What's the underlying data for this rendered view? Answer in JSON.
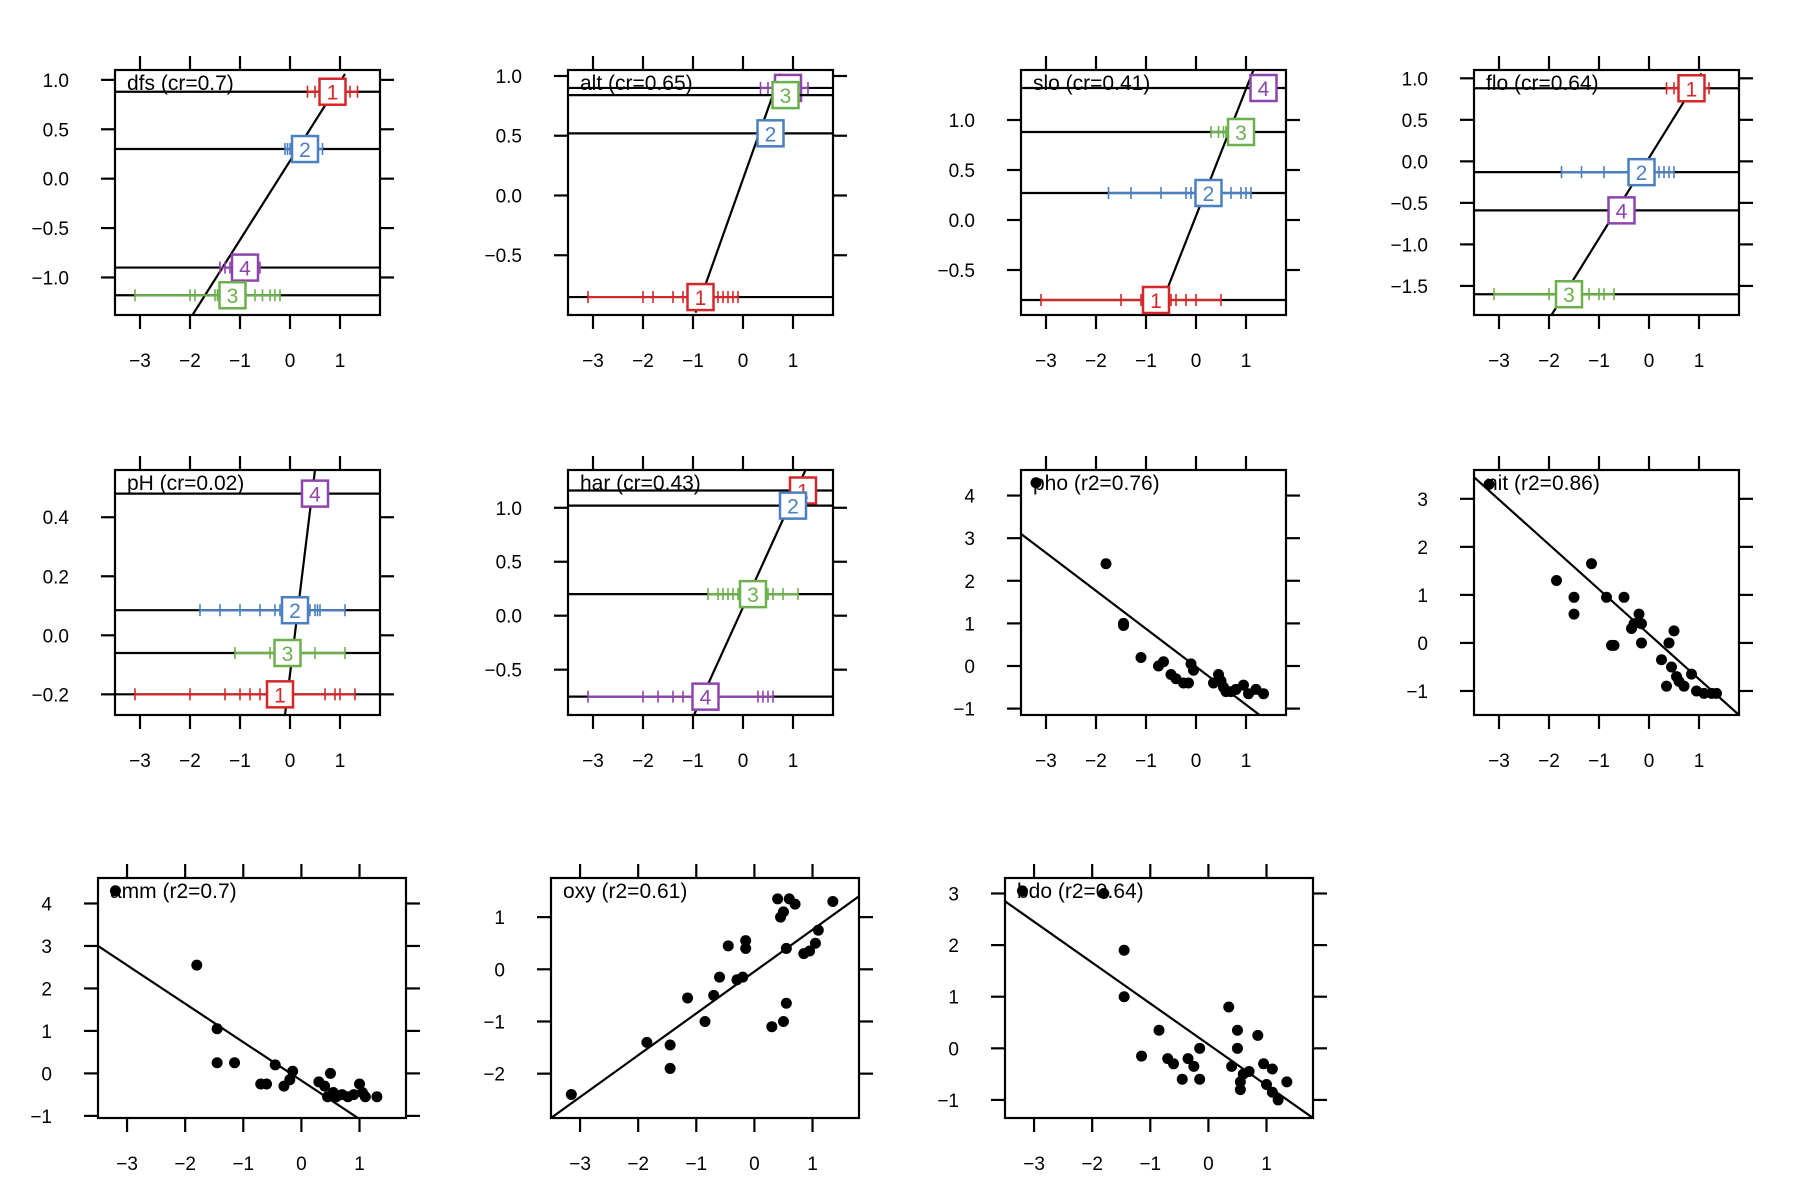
{
  "figure": {
    "colors": {
      "1": "#d62728",
      "2": "#4a7fc1",
      "3": "#6ab04c",
      "4": "#8e44ad",
      "axis": "#000000",
      "points": "#000000"
    }
  },
  "chart_data": [
    {
      "type": "line",
      "title": "dfs (cr=0.7)",
      "xticks": [
        -3,
        -2,
        -1,
        0,
        1
      ],
      "yticks": [
        -1.0,
        -0.5,
        0.0,
        0.5,
        1.0
      ],
      "ytick_labels": [
        "−1.0",
        "−0.5",
        "0.0",
        "0.5",
        "1.0"
      ],
      "xlim": [
        -3.5,
        1.8
      ],
      "ylim": [
        -1.38,
        1.1
      ],
      "line": {
        "x1": -1.95,
        "y1": -1.38,
        "x2": 1.1,
        "y2": 1.06
      },
      "levels": [
        {
          "label": "1",
          "x": 0.85,
          "y": 0.88,
          "rug": [
            0.35,
            0.5,
            0.62,
            0.72,
            0.8,
            0.95,
            1.1,
            1.2,
            1.35
          ]
        },
        {
          "label": "2",
          "x": 0.3,
          "y": 0.3,
          "rug": [
            -0.1,
            -0.05,
            0.0,
            0.05,
            0.1,
            0.15,
            0.2,
            0.45,
            0.55,
            0.65
          ]
        },
        {
          "label": "4",
          "x": -0.9,
          "y": -0.9,
          "rug": [
            -1.4,
            -1.3,
            -1.2,
            -1.1,
            -0.7,
            -0.65,
            -0.6
          ]
        },
        {
          "label": "3",
          "x": -1.15,
          "y": -1.18,
          "rug": [
            -3.1,
            -2.0,
            -1.9,
            -1.5,
            -1.45,
            -0.7,
            -0.55,
            -0.4,
            -0.3,
            -0.2
          ]
        }
      ]
    },
    {
      "type": "line",
      "title": "alt (cr=0.65)",
      "xticks": [
        -3,
        -2,
        -1,
        0,
        1
      ],
      "yticks": [
        -0.5,
        0.0,
        0.5,
        1.0
      ],
      "ytick_labels": [
        "−0.5",
        "0.0",
        "0.5",
        "1.0"
      ],
      "xlim": [
        -3.5,
        1.8
      ],
      "ylim": [
        -1.0,
        1.05
      ],
      "line": {
        "x1": -0.95,
        "y1": -0.98,
        "x2": 0.75,
        "y2": 1.02
      },
      "levels": [
        {
          "label": "4",
          "x": 0.9,
          "y": 0.9,
          "rug": [
            0.35,
            0.5,
            0.7,
            0.8,
            0.9,
            1.0,
            1.1,
            1.3
          ]
        },
        {
          "label": "3",
          "x": 0.85,
          "y": 0.84,
          "rug": []
        },
        {
          "label": "2",
          "x": 0.55,
          "y": 0.52,
          "rug": []
        },
        {
          "label": "1",
          "x": -0.85,
          "y": -0.85,
          "rug": [
            -3.1,
            -2.0,
            -1.8,
            -1.4,
            -1.2,
            -0.6,
            -0.5,
            -0.4,
            -0.3,
            -0.2,
            -0.1
          ]
        }
      ]
    },
    {
      "type": "line",
      "title": "slo (cr=0.41)",
      "xticks": [
        -3,
        -2,
        -1,
        0,
        1
      ],
      "yticks": [
        -0.5,
        0.0,
        0.5,
        1.0
      ],
      "ytick_labels": [
        "−0.5",
        "0.0",
        "0.5",
        "1.0"
      ],
      "xlim": [
        -3.5,
        1.8
      ],
      "ylim": [
        -0.95,
        1.5
      ],
      "line": {
        "x1": -0.78,
        "y1": -0.95,
        "x2": 1.15,
        "y2": 1.5
      },
      "levels": [
        {
          "label": "4",
          "x": 1.35,
          "y": 1.32,
          "rug": []
        },
        {
          "label": "3",
          "x": 0.9,
          "y": 0.88,
          "rug": [
            0.3,
            0.45,
            0.55,
            0.6,
            0.7,
            1.1
          ]
        },
        {
          "label": "2",
          "x": 0.25,
          "y": 0.27,
          "rug": [
            -1.75,
            -1.3,
            -0.7,
            -0.2,
            -0.1,
            0.0,
            0.1,
            0.4,
            0.5,
            0.7,
            0.9,
            1.0,
            1.1
          ]
        },
        {
          "label": "1",
          "x": -0.8,
          "y": -0.8,
          "rug": [
            -3.1,
            -1.5,
            -1.1,
            -0.9,
            -0.6,
            -0.5,
            -0.4,
            -0.2,
            0.0,
            0.5
          ]
        }
      ]
    },
    {
      "type": "line",
      "title": "flo (cr=0.64)",
      "xticks": [
        -3,
        -2,
        -1,
        0,
        1
      ],
      "yticks": [
        -1.5,
        -1.0,
        -0.5,
        0.0,
        0.5,
        1.0
      ],
      "ytick_labels": [
        "−1.5",
        "−1.0",
        "−0.5",
        "0.0",
        "0.5",
        "1.0"
      ],
      "xlim": [
        -3.5,
        1.8
      ],
      "ylim": [
        -1.85,
        1.1
      ],
      "line": {
        "x1": -1.95,
        "y1": -1.85,
        "x2": 1.05,
        "y2": 1.06
      },
      "levels": [
        {
          "label": "1",
          "x": 0.85,
          "y": 0.88,
          "rug": [
            0.35,
            0.5,
            0.65,
            0.8,
            0.9,
            1.05,
            1.2
          ]
        },
        {
          "label": "2",
          "x": -0.15,
          "y": -0.13,
          "rug": [
            -1.75,
            -1.35,
            -0.9,
            -0.4,
            -0.2,
            -0.1,
            0.05,
            0.2,
            0.3,
            0.4,
            0.5
          ]
        },
        {
          "label": "4",
          "x": -0.55,
          "y": -0.59,
          "rug": []
        },
        {
          "label": "3",
          "x": -1.6,
          "y": -1.6,
          "rug": [
            -3.1,
            -2.0,
            -1.85,
            -1.4,
            -1.2,
            -1.0,
            -0.9,
            -0.7
          ]
        }
      ]
    },
    {
      "type": "line",
      "title": "pH (cr=0.02)",
      "xticks": [
        -3,
        -2,
        -1,
        0,
        1
      ],
      "yticks": [
        -0.2,
        0.0,
        0.2,
        0.4
      ],
      "ytick_labels": [
        "−0.2",
        "0.0",
        "0.2",
        "0.4"
      ],
      "xlim": [
        -3.5,
        1.8
      ],
      "ylim": [
        -0.27,
        0.56
      ],
      "line": {
        "x1": -0.1,
        "y1": -0.27,
        "x2": 0.5,
        "y2": 0.56
      },
      "levels": [
        {
          "label": "4",
          "x": 0.5,
          "y": 0.48,
          "rug": []
        },
        {
          "label": "2",
          "x": 0.1,
          "y": 0.085,
          "rug": [
            -1.8,
            -1.4,
            -1.0,
            -0.6,
            -0.3,
            -0.2,
            -0.1,
            0.0,
            0.1,
            0.3,
            0.4,
            0.5,
            0.55,
            0.6,
            1.1
          ]
        },
        {
          "label": "3",
          "x": -0.05,
          "y": -0.06,
          "rug": [
            -1.1,
            -0.4,
            -0.3,
            -0.1,
            0.5,
            1.1
          ]
        },
        {
          "label": "1",
          "x": -0.2,
          "y": -0.2,
          "rug": [
            -3.1,
            -2.0,
            -1.3,
            -1.0,
            -0.8,
            -0.6,
            -0.4,
            -0.3,
            0.0,
            0.7,
            0.9,
            1.0,
            1.3
          ]
        }
      ]
    },
    {
      "type": "line",
      "title": "har (cr=0.43)",
      "xticks": [
        -3,
        -2,
        -1,
        0,
        1
      ],
      "yticks": [
        -0.5,
        0.0,
        0.5,
        1.0
      ],
      "ytick_labels": [
        "−0.5",
        "0.0",
        "0.5",
        "1.0"
      ],
      "xlim": [
        -3.5,
        1.8
      ],
      "ylim": [
        -0.92,
        1.35
      ],
      "line": {
        "x1": -0.98,
        "y1": -0.92,
        "x2": 1.25,
        "y2": 1.35
      },
      "levels": [
        {
          "label": "1",
          "x": 1.2,
          "y": 1.16,
          "rug": []
        },
        {
          "label": "2",
          "x": 1.0,
          "y": 1.02,
          "rug": []
        },
        {
          "label": "3",
          "x": 0.2,
          "y": 0.2,
          "rug": [
            -0.7,
            -0.5,
            -0.4,
            -0.3,
            -0.2,
            -0.1,
            0.0,
            0.4,
            0.5,
            0.6,
            0.8,
            1.1
          ]
        },
        {
          "label": "4",
          "x": -0.75,
          "y": -0.75,
          "rug": [
            -3.1,
            -2.0,
            -1.7,
            -1.4,
            -1.2,
            -1.0,
            -0.5,
            0.3,
            0.4,
            0.5,
            0.6
          ]
        }
      ]
    },
    {
      "type": "scatter",
      "title": "pho (r2=0.76)",
      "xticks": [
        -3,
        -2,
        -1,
        0,
        1
      ],
      "yticks": [
        -1,
        0,
        1,
        2,
        3,
        4
      ],
      "ytick_labels": [
        "−1",
        "0",
        "1",
        "2",
        "3",
        "4"
      ],
      "xlim": [
        -3.5,
        1.8
      ],
      "ylim": [
        -1.15,
        4.6
      ],
      "line": {
        "x1": -3.5,
        "y1": 3.1,
        "x2": 1.8,
        "y2": -1.62
      },
      "points": [
        [
          -3.2,
          4.3
        ],
        [
          -1.8,
          2.4
        ],
        [
          -1.45,
          1.0
        ],
        [
          -1.45,
          0.95
        ],
        [
          -1.1,
          0.2
        ],
        [
          -0.75,
          0.0
        ],
        [
          -0.65,
          0.1
        ],
        [
          -0.5,
          -0.2
        ],
        [
          -0.4,
          -0.3
        ],
        [
          -0.25,
          -0.4
        ],
        [
          -0.15,
          -0.4
        ],
        [
          -0.1,
          0.05
        ],
        [
          -0.05,
          -0.1
        ],
        [
          0.35,
          -0.4
        ],
        [
          0.45,
          -0.2
        ],
        [
          0.5,
          -0.35
        ],
        [
          0.55,
          -0.5
        ],
        [
          0.6,
          -0.6
        ],
        [
          0.7,
          -0.6
        ],
        [
          0.8,
          -0.55
        ],
        [
          0.95,
          -0.45
        ],
        [
          1.05,
          -0.65
        ],
        [
          1.2,
          -0.55
        ],
        [
          1.35,
          -0.65
        ]
      ]
    },
    {
      "type": "scatter",
      "title": "nit (r2=0.86)",
      "xticks": [
        -3,
        -2,
        -1,
        0,
        1
      ],
      "yticks": [
        -1,
        0,
        1,
        2,
        3
      ],
      "ytick_labels": [
        "−1",
        "0",
        "1",
        "2",
        "3"
      ],
      "xlim": [
        -3.5,
        1.8
      ],
      "ylim": [
        -1.5,
        3.6
      ],
      "line": {
        "x1": -3.5,
        "y1": 3.45,
        "x2": 1.8,
        "y2": -1.5
      },
      "points": [
        [
          -3.2,
          3.3
        ],
        [
          -1.85,
          1.3
        ],
        [
          -1.5,
          0.95
        ],
        [
          -1.5,
          0.6
        ],
        [
          -1.15,
          1.65
        ],
        [
          -0.85,
          0.95
        ],
        [
          -0.75,
          -0.05
        ],
        [
          -0.7,
          -0.05
        ],
        [
          -0.5,
          0.95
        ],
        [
          -0.35,
          0.3
        ],
        [
          -0.3,
          0.4
        ],
        [
          -0.2,
          0.6
        ],
        [
          -0.15,
          0.4
        ],
        [
          -0.15,
          0.0
        ],
        [
          0.25,
          -0.35
        ],
        [
          0.35,
          -0.9
        ],
        [
          0.4,
          0.0
        ],
        [
          0.45,
          -0.5
        ],
        [
          0.5,
          0.25
        ],
        [
          0.55,
          -0.7
        ],
        [
          0.6,
          -0.8
        ],
        [
          0.7,
          -0.9
        ],
        [
          0.85,
          -0.65
        ],
        [
          0.95,
          -1.0
        ],
        [
          1.1,
          -1.05
        ],
        [
          1.25,
          -1.05
        ],
        [
          1.35,
          -1.05
        ]
      ]
    },
    {
      "type": "scatter",
      "title": "amm (r2=0.7)",
      "xticks": [
        -3,
        -2,
        -1,
        0,
        1
      ],
      "yticks": [
        -1,
        0,
        1,
        2,
        3,
        4
      ],
      "ytick_labels": [
        "−1",
        "0",
        "1",
        "2",
        "3",
        "4"
      ],
      "xlim": [
        -3.5,
        1.8
      ],
      "ylim": [
        -1.05,
        4.6
      ],
      "line": {
        "x1": -3.5,
        "y1": 3.0,
        "x2": 1.8,
        "y2": -1.8
      },
      "points": [
        [
          -3.2,
          4.3
        ],
        [
          -1.8,
          2.55
        ],
        [
          -1.45,
          1.05
        ],
        [
          -1.45,
          0.25
        ],
        [
          -1.15,
          0.25
        ],
        [
          -0.7,
          -0.25
        ],
        [
          -0.6,
          -0.25
        ],
        [
          -0.45,
          0.2
        ],
        [
          -0.3,
          -0.3
        ],
        [
          -0.2,
          -0.15
        ],
        [
          -0.15,
          0.05
        ],
        [
          0.3,
          -0.2
        ],
        [
          0.4,
          -0.3
        ],
        [
          0.45,
          -0.55
        ],
        [
          0.5,
          0.0
        ],
        [
          0.55,
          -0.45
        ],
        [
          0.6,
          -0.55
        ],
        [
          0.7,
          -0.5
        ],
        [
          0.8,
          -0.55
        ],
        [
          0.9,
          -0.5
        ],
        [
          1.0,
          -0.25
        ],
        [
          1.05,
          -0.45
        ],
        [
          1.1,
          -0.55
        ],
        [
          1.3,
          -0.55
        ]
      ]
    },
    {
      "type": "scatter",
      "title": "oxy (r2=0.61)",
      "xticks": [
        -3,
        -2,
        -1,
        0,
        1
      ],
      "yticks": [
        -2,
        -1,
        0,
        1
      ],
      "ytick_labels": [
        "−2",
        "−1",
        "0",
        "1"
      ],
      "xlim": [
        -3.5,
        1.8
      ],
      "ylim": [
        -2.85,
        1.75
      ],
      "line": {
        "x1": -3.5,
        "y1": -2.85,
        "x2": 1.8,
        "y2": 1.4
      },
      "points": [
        [
          -3.15,
          -2.4
        ],
        [
          -1.85,
          -1.4
        ],
        [
          -1.45,
          -1.45
        ],
        [
          -1.45,
          -1.9
        ],
        [
          -1.15,
          -0.55
        ],
        [
          -0.85,
          -1.0
        ],
        [
          -0.7,
          -0.5
        ],
        [
          -0.6,
          -0.15
        ],
        [
          -0.45,
          0.45
        ],
        [
          -0.3,
          -0.2
        ],
        [
          -0.2,
          -0.15
        ],
        [
          -0.15,
          0.4
        ],
        [
          -0.15,
          0.55
        ],
        [
          0.3,
          -1.1
        ],
        [
          0.4,
          1.35
        ],
        [
          0.45,
          1.0
        ],
        [
          0.5,
          1.1
        ],
        [
          0.5,
          -1.0
        ],
        [
          0.55,
          -0.65
        ],
        [
          0.55,
          0.4
        ],
        [
          0.6,
          1.35
        ],
        [
          0.7,
          1.25
        ],
        [
          0.85,
          0.3
        ],
        [
          0.95,
          0.35
        ],
        [
          1.05,
          0.5
        ],
        [
          1.1,
          0.75
        ],
        [
          1.35,
          1.3
        ]
      ]
    },
    {
      "type": "scatter",
      "title": "bdo (r2=0.64)",
      "xticks": [
        -3,
        -2,
        -1,
        0,
        1
      ],
      "yticks": [
        -1,
        0,
        1,
        2,
        3
      ],
      "ytick_labels": [
        "−1",
        "0",
        "1",
        "2",
        "3"
      ],
      "xlim": [
        -3.5,
        1.8
      ],
      "ylim": [
        -1.35,
        3.3
      ],
      "line": {
        "x1": -3.5,
        "y1": 2.85,
        "x2": 1.8,
        "y2": -1.35
      },
      "points": [
        [
          -3.2,
          3.05
        ],
        [
          -1.8,
          3.0
        ],
        [
          -1.45,
          1.9
        ],
        [
          -1.45,
          1.0
        ],
        [
          -1.15,
          -0.15
        ],
        [
          -0.85,
          0.35
        ],
        [
          -0.7,
          -0.2
        ],
        [
          -0.6,
          -0.3
        ],
        [
          -0.45,
          -0.6
        ],
        [
          -0.35,
          -0.2
        ],
        [
          -0.25,
          -0.35
        ],
        [
          -0.15,
          0.0
        ],
        [
          -0.15,
          -0.6
        ],
        [
          0.35,
          0.8
        ],
        [
          0.4,
          -0.35
        ],
        [
          0.5,
          0.35
        ],
        [
          0.5,
          0.0
        ],
        [
          0.55,
          -0.65
        ],
        [
          0.55,
          -0.8
        ],
        [
          0.6,
          -0.5
        ],
        [
          0.7,
          -0.45
        ],
        [
          0.85,
          0.25
        ],
        [
          0.95,
          -0.3
        ],
        [
          1.0,
          -0.7
        ],
        [
          1.1,
          -0.4
        ],
        [
          1.1,
          -0.85
        ],
        [
          1.2,
          -1.0
        ],
        [
          1.35,
          -0.65
        ]
      ]
    }
  ]
}
